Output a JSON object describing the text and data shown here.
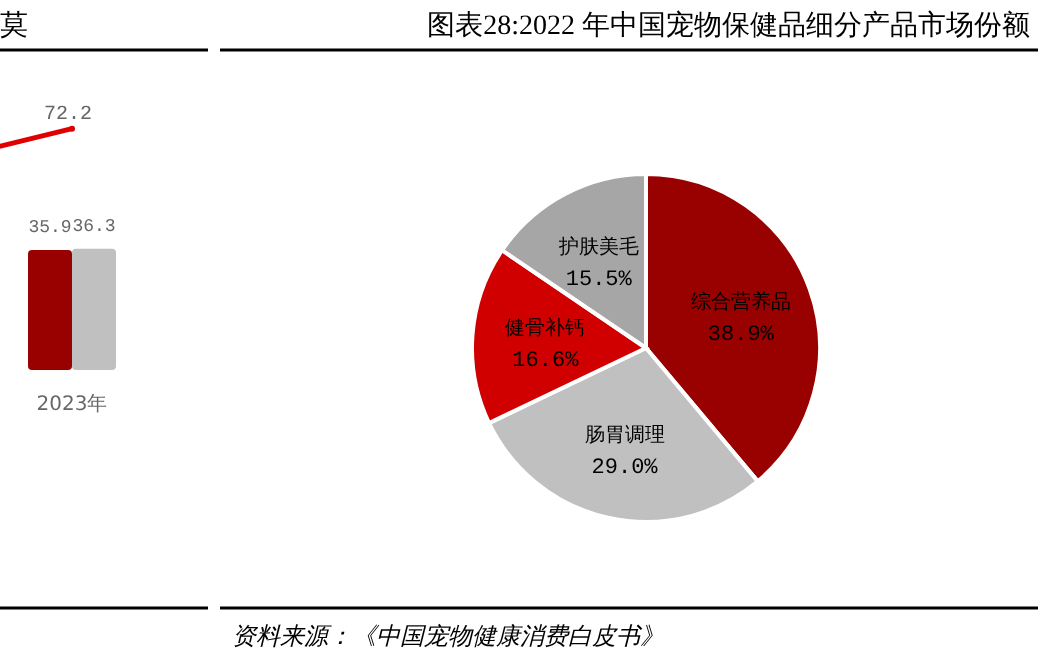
{
  "chart_data": [
    {
      "type": "bar",
      "title": "莫",
      "categories": [
        "2023年"
      ],
      "data_labels": true,
      "series": [
        {
          "color": "#990000",
          "values": [
            35.9
          ]
        },
        {
          "color": "#c0c0c0",
          "values": [
            36.3
          ]
        },
        {
          "type": "line",
          "marker": "circle",
          "color": "#e00000",
          "values": [
            72.2
          ],
          "value_labels": [
            "72.2"
          ]
        }
      ]
    },
    {
      "type": "pie",
      "title": "图表28:2022 年中国宠物保健品细分产品市场份额",
      "categories": [
        "综合营养品",
        "肠胃调理",
        "健骨补钙",
        "护肤美毛"
      ],
      "values": [
        38.9,
        29.0,
        16.6,
        15.5
      ],
      "value_labels": [
        "38.9%",
        "29.0%",
        "16.6%",
        "15.5%"
      ],
      "colors": [
        "#990000",
        "#c0c0c0",
        "#d10000",
        "#a6a6a6"
      ],
      "annotations": [
        "资料来源：《中国宠物健康消费白皮书》"
      ]
    }
  ]
}
